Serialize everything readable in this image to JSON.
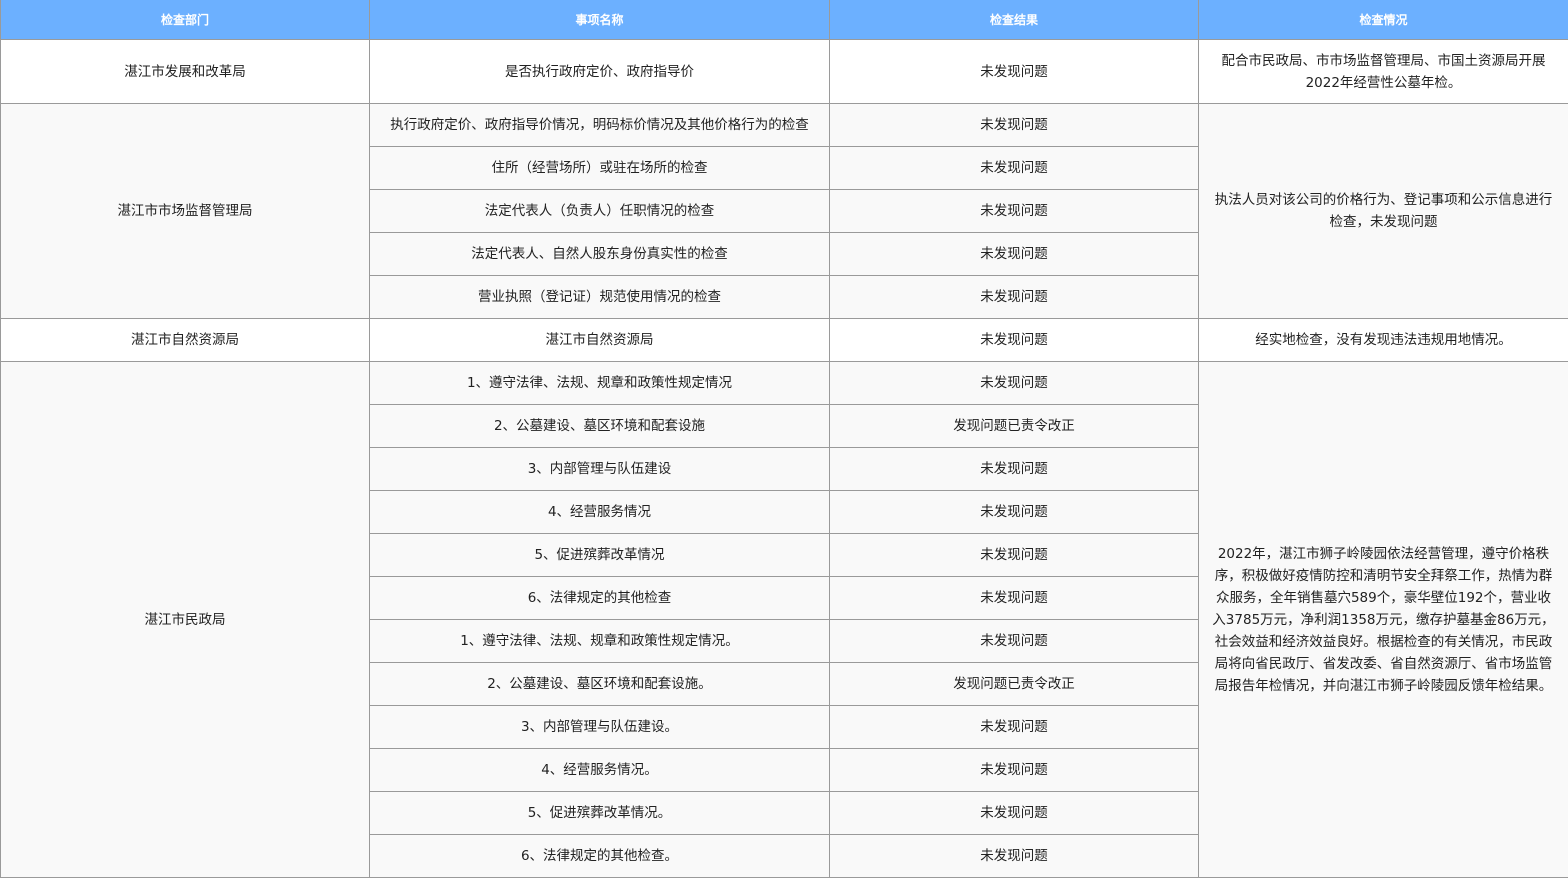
{
  "headers": [
    "检查部门",
    "事项名称",
    "检查结果",
    "检查情况"
  ],
  "groups": [
    {
      "department": "湛江市发展和改革局",
      "situation": "配合市民政局、市市场监督管理局、市国土资源局开展2022年经营性公墓年检。",
      "items": [
        {
          "name": "是否执行政府定价、政府指导价",
          "result": "未发现问题"
        }
      ]
    },
    {
      "department": "湛江市市场监督管理局",
      "situation": "执法人员对该公司的价格行为、登记事项和公示信息进行检查，未发现问题",
      "items": [
        {
          "name": "执行政府定价、政府指导价情况，明码标价情况及其他价格行为的检查",
          "result": "未发现问题"
        },
        {
          "name": "住所（经营场所）或驻在场所的检查",
          "result": "未发现问题"
        },
        {
          "name": "法定代表人（负责人）任职情况的检查",
          "result": "未发现问题"
        },
        {
          "name": "法定代表人、自然人股东身份真实性的检查",
          "result": "未发现问题"
        },
        {
          "name": "营业执照（登记证）规范使用情况的检查",
          "result": "未发现问题"
        }
      ]
    },
    {
      "department": "湛江市自然资源局",
      "situation": "经实地检查，没有发现违法违规用地情况。",
      "items": [
        {
          "name": "湛江市自然资源局",
          "result": "未发现问题"
        }
      ]
    },
    {
      "department": "湛江市民政局",
      "situation": "2022年，湛江市狮子岭陵园依法经营管理，遵守价格秩序，积极做好疫情防控和清明节安全拜祭工作，热情为群众服务，全年销售墓穴589个，豪华壁位192个，营业收入3785万元，净利润1358万元，缴存护墓基金86万元，社会效益和经济效益良好。根据检查的有关情况，市民政局将向省民政厅、省发改委、省自然资源厅、省市场监管局报告年检情况，并向湛江市狮子岭陵园反馈年检结果。",
      "items": [
        {
          "name": "1、遵守法律、法规、规章和政策性规定情况",
          "result": "未发现问题"
        },
        {
          "name": "2、公墓建设、墓区环境和配套设施",
          "result": "发现问题已责令改正"
        },
        {
          "name": "3、内部管理与队伍建设",
          "result": "未发现问题"
        },
        {
          "name": "4、经营服务情况",
          "result": "未发现问题"
        },
        {
          "name": "5、促进殡葬改革情况",
          "result": "未发现问题"
        },
        {
          "name": "6、法律规定的其他检查",
          "result": "未发现问题"
        },
        {
          "name": "1、遵守法律、法规、规章和政策性规定情况。",
          "result": "未发现问题"
        },
        {
          "name": "2、公墓建设、墓区环境和配套设施。",
          "result": "发现问题已责令改正"
        },
        {
          "name": "3、内部管理与队伍建设。",
          "result": "未发现问题"
        },
        {
          "name": "4、经营服务情况。",
          "result": "未发现问题"
        },
        {
          "name": "5、促进殡葬改革情况。",
          "result": "未发现问题"
        },
        {
          "name": "6、法律规定的其他检查。",
          "result": "未发现问题"
        }
      ]
    }
  ]
}
